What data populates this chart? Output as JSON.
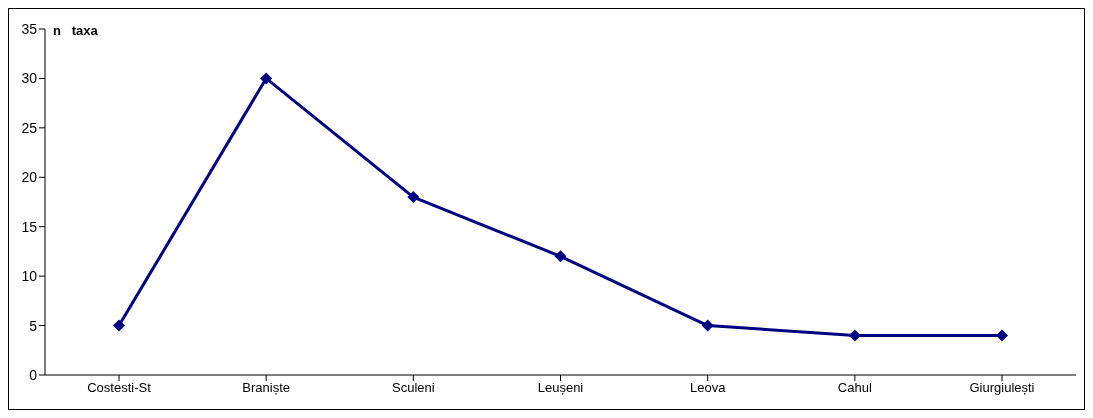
{
  "chart_data": {
    "type": "line",
    "ylabel": "n   taxa",
    "categories": [
      "Costesti-St",
      "Braniște",
      "Sculeni",
      "Leușeni",
      "Leova",
      "Cahul",
      "Giurgiulești"
    ],
    "series": [
      {
        "color": "#000080",
        "values": [
          5,
          30,
          18,
          12,
          5,
          4,
          4
        ]
      }
    ],
    "ylim": [
      0,
      35
    ],
    "yticks": [
      0,
      5,
      10,
      15,
      20,
      25,
      30,
      35
    ],
    "grid": false,
    "legend": false,
    "marker": "diamond",
    "line_style": "solid"
  }
}
